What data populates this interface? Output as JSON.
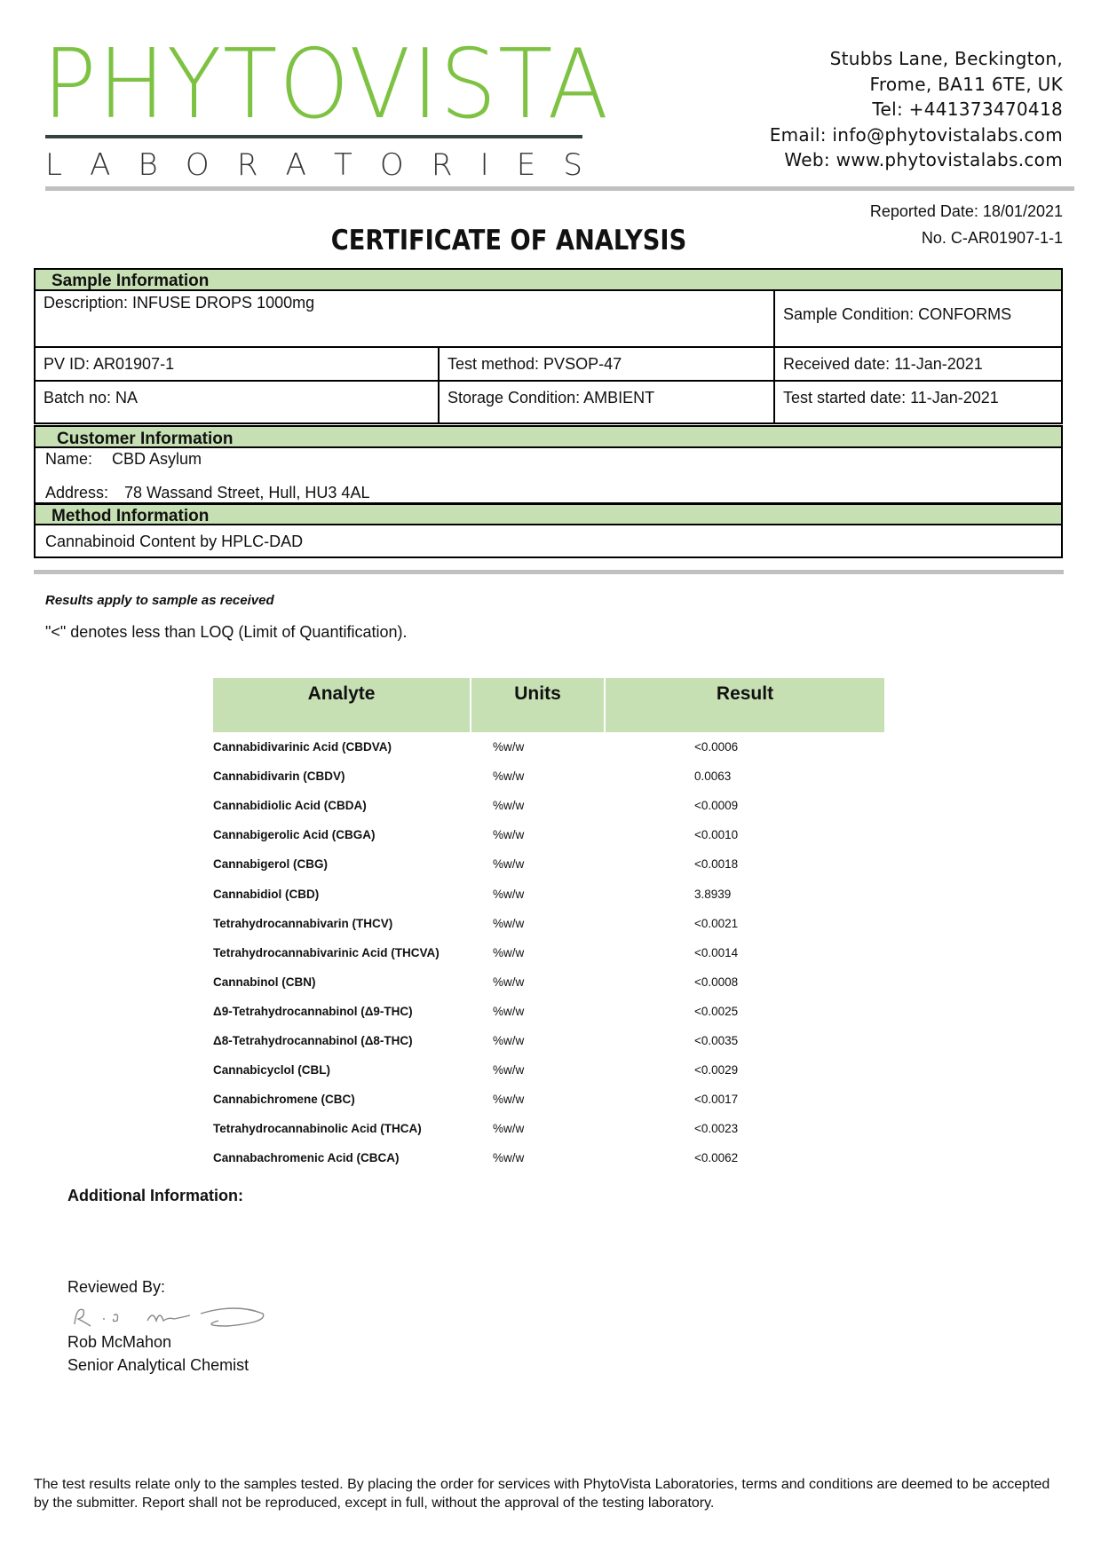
{
  "header": {
    "logo_main": "PHYTOVISTA",
    "logo_sub": "LABORATORIES",
    "brand_color": "#7dc242",
    "address_lines": [
      "Stubbs Lane, Beckington,",
      "Frome, BA11 6TE, UK",
      "Tel: +441373470418",
      "Email: info@phytovistalabs.com",
      "Web: www.phytovistalabs.com"
    ],
    "reported_date": "Reported Date: 18/01/2021",
    "cert_no": "No. C-AR01907-1-1",
    "title": "CERTIFICATE OF ANALYSIS"
  },
  "sample": {
    "heading": "Sample Information",
    "description": "Description: INFUSE DROPS 1000mg",
    "condition": "Sample Condition: CONFORMS",
    "pv_id": "PV ID: AR01907-1",
    "test_method": "Test method: PVSOP-47",
    "received": "Received date: 11-Jan-2021",
    "batch": "Batch no: NA",
    "storage": "Storage Condition: AMBIENT",
    "test_started": "Test started date: 11-Jan-2021"
  },
  "customer": {
    "heading": "Customer Information",
    "name_label": "Name:",
    "name": "CBD Asylum",
    "address_label": "Address:",
    "address": "78 Wassand Street, Hull, HU3 4AL"
  },
  "method": {
    "heading": "Method Information",
    "text": "Cannabinoid Content by HPLC-DAD"
  },
  "notes": {
    "results_apply": "Results apply to sample as received",
    "loq": "\"<\" denotes less than LOQ (Limit of Quantification)."
  },
  "results": {
    "headers": [
      "Analyte",
      "Units",
      "Result"
    ],
    "rows": [
      [
        "Cannabidivarinic Acid (CBDVA)",
        "%w/w",
        "<0.0006"
      ],
      [
        "Cannabidivarin (CBDV)",
        "%w/w",
        "0.0063"
      ],
      [
        "Cannabidiolic Acid (CBDA)",
        "%w/w",
        "<0.0009"
      ],
      [
        "Cannabigerolic Acid (CBGA)",
        "%w/w",
        "<0.0010"
      ],
      [
        "Cannabigerol (CBG)",
        "%w/w",
        "<0.0018"
      ],
      [
        "Cannabidiol (CBD)",
        "%w/w",
        "3.8939"
      ],
      [
        "Tetrahydrocannabivarin (THCV)",
        "%w/w",
        "<0.0021"
      ],
      [
        "Tetrahydrocannabivarinic Acid (THCVA)",
        "%w/w",
        "<0.0014"
      ],
      [
        "Cannabinol (CBN)",
        "%w/w",
        "<0.0008"
      ],
      [
        "Δ9-Tetrahydrocannabinol (Δ9-THC)",
        "%w/w",
        "<0.0025"
      ],
      [
        "Δ8-Tetrahydrocannabinol (Δ8-THC)",
        "%w/w",
        "<0.0035"
      ],
      [
        "Cannabicyclol (CBL)",
        "%w/w",
        "<0.0029"
      ],
      [
        "Cannabichromene (CBC)",
        "%w/w",
        "<0.0017"
      ],
      [
        "Tetrahydrocannabinolic Acid (THCA)",
        "%w/w",
        "<0.0023"
      ],
      [
        "Cannabachromenic Acid (CBCA)",
        "%w/w",
        "<0.0062"
      ]
    ]
  },
  "additional": "Additional Information:",
  "review": {
    "label": "Reviewed By:",
    "signature": "R. S. McMahon",
    "name": "Rob McMahon",
    "role": "Senior Analytical Chemist"
  },
  "footer": "The test results relate only to the samples tested.  By placing the order for services with PhytoVista Laboratories, terms and conditions are deemed to be accepted by the submitter. Report shall not be reproduced, except in full, without the approval of the testing laboratory."
}
